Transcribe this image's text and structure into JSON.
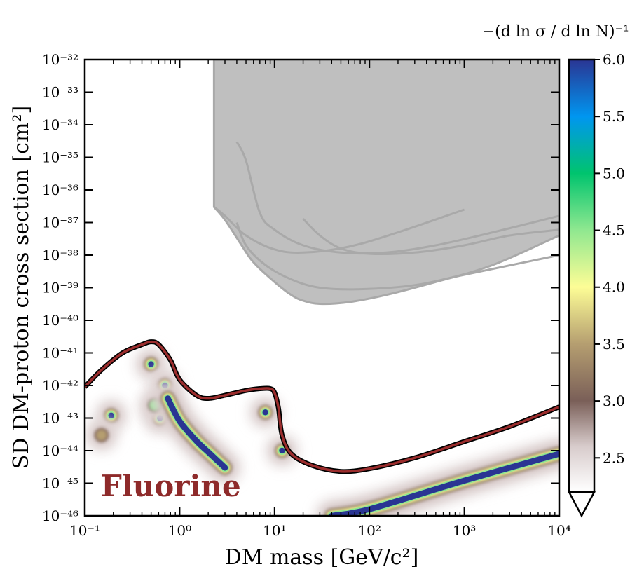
{
  "chart_data": {
    "type": "contour",
    "xlabel": "DM mass [GeV/c²]",
    "ylabel": "SD DM-proton cross section [cm²]",
    "xscale": "log",
    "yscale": "log",
    "xlim": [
      0.1,
      10000
    ],
    "ylim": [
      1e-46,
      1e-32
    ],
    "x_ticks": [
      {
        "value": 0.1,
        "label": "10⁻¹"
      },
      {
        "value": 1,
        "label": "10⁰"
      },
      {
        "value": 10,
        "label": "10¹"
      },
      {
        "value": 100,
        "label": "10²"
      },
      {
        "value": 1000,
        "label": "10³"
      },
      {
        "value": 10000,
        "label": "10⁴"
      }
    ],
    "y_ticks": [
      {
        "value": 1e-32,
        "label": "10⁻³²"
      },
      {
        "value": 1e-33,
        "label": "10⁻³³"
      },
      {
        "value": 1e-34,
        "label": "10⁻³⁴"
      },
      {
        "value": 1e-35,
        "label": "10⁻³⁵"
      },
      {
        "value": 1e-36,
        "label": "10⁻³⁶"
      },
      {
        "value": 1e-37,
        "label": "10⁻³⁷"
      },
      {
        "value": 1e-38,
        "label": "10⁻³⁸"
      },
      {
        "value": 1e-39,
        "label": "10⁻³⁹"
      },
      {
        "value": 1e-40,
        "label": "10⁻⁴⁰"
      },
      {
        "value": 1e-41,
        "label": "10⁻⁴¹"
      },
      {
        "value": 1e-42,
        "label": "10⁻⁴²"
      },
      {
        "value": 1e-43,
        "label": "10⁻⁴³"
      },
      {
        "value": 1e-44,
        "label": "10⁻⁴⁴"
      },
      {
        "value": 1e-45,
        "label": "10⁻⁴⁵"
      },
      {
        "value": 1e-46,
        "label": "10⁻⁴⁶"
      }
    ],
    "annotation": {
      "text": "Fluorine",
      "color": "#8e2a2a"
    },
    "colorbar": {
      "title": "−(d ln σ / d ln N)⁻¹",
      "range": [
        2.2,
        6.0
      ],
      "extend": "min",
      "ticks": [
        {
          "value": 6.0,
          "label": "6.0"
        },
        {
          "value": 5.5,
          "label": "5.5"
        },
        {
          "value": 5.0,
          "label": "5.0"
        },
        {
          "value": 4.5,
          "label": "4.5"
        },
        {
          "value": 4.0,
          "label": "4.0"
        },
        {
          "value": 3.5,
          "label": "3.5"
        },
        {
          "value": 3.0,
          "label": "3.0"
        },
        {
          "value": 2.5,
          "label": "2.5"
        }
      ],
      "colors": [
        {
          "value": 2.2,
          "color": "#ffffff"
        },
        {
          "value": 2.6,
          "color": "#d8cccc"
        },
        {
          "value": 3.0,
          "color": "#7a5f58"
        },
        {
          "value": 3.5,
          "color": "#b59e70"
        },
        {
          "value": 4.0,
          "color": "#fdfd96"
        },
        {
          "value": 4.5,
          "color": "#90e890"
        },
        {
          "value": 5.0,
          "color": "#00c46e"
        },
        {
          "value": 5.5,
          "color": "#0096f0"
        },
        {
          "value": 6.0,
          "color": "#2a3593"
        }
      ]
    },
    "excluded_region": {
      "color": "#bfbfbf",
      "boundary": [
        [
          2.3,
          1e-32
        ],
        [
          2.3,
          3e-37
        ],
        [
          3,
          1.2e-37
        ],
        [
          4.5,
          2e-38
        ],
        [
          6,
          6e-39
        ],
        [
          10,
          1.5e-39
        ],
        [
          15,
          6e-40
        ],
        [
          20,
          4e-40
        ],
        [
          30,
          3.2e-40
        ],
        [
          60,
          3.6e-40
        ],
        [
          150,
          6e-40
        ],
        [
          500,
          1.5e-39
        ],
        [
          2000,
          5e-39
        ],
        [
          10000,
          4e-38
        ],
        [
          10000,
          1e-32
        ]
      ]
    },
    "limit_curves": [
      {
        "color": "#a9a9a9",
        "points": [
          [
            2.3,
            3e-37
          ],
          [
            3,
            1.6e-37
          ],
          [
            5,
            4e-38
          ],
          [
            10,
            1.5e-38
          ],
          [
            20,
            1.2e-38
          ],
          [
            60,
            1.8e-38
          ],
          [
            200,
            5e-38
          ],
          [
            1000,
            2.5e-37
          ]
        ]
      },
      {
        "color": "#a9a9a9",
        "points": [
          [
            4,
            3e-35
          ],
          [
            5,
            8e-36
          ],
          [
            7,
            2e-37
          ],
          [
            10,
            6e-38
          ],
          [
            20,
            2e-38
          ],
          [
            50,
            1.2e-38
          ],
          [
            150,
            1.2e-38
          ],
          [
            500,
            2e-38
          ],
          [
            2000,
            5e-38
          ],
          [
            10000,
            1.6e-37
          ]
        ]
      },
      {
        "color": "#a9a9a9",
        "points": [
          [
            20,
            1.3e-37
          ],
          [
            30,
            4e-38
          ],
          [
            50,
            1.6e-38
          ],
          [
            100,
            1.1e-38
          ],
          [
            300,
            1.2e-38
          ],
          [
            1000,
            2e-38
          ],
          [
            3000,
            4e-38
          ],
          [
            10000,
            6e-38
          ]
        ]
      },
      {
        "color": "#a9a9a9",
        "points": [
          [
            4,
            1e-37
          ],
          [
            5,
            2e-38
          ],
          [
            8,
            5e-39
          ],
          [
            15,
            1.8e-39
          ],
          [
            30,
            1e-39
          ],
          [
            80,
            9e-40
          ],
          [
            300,
            1.2e-39
          ],
          [
            1000,
            2.5e-39
          ],
          [
            10000,
            1e-38
          ]
        ]
      }
    ],
    "neutrino_floor": {
      "color": "#9b2d2d",
      "points": [
        [
          0.1,
          9e-43
        ],
        [
          0.15,
          3e-42
        ],
        [
          0.25,
          1e-41
        ],
        [
          0.4,
          1.8e-41
        ],
        [
          0.5,
          2.2e-41
        ],
        [
          0.6,
          1.8e-41
        ],
        [
          0.8,
          6e-42
        ],
        [
          1,
          1.5e-42
        ],
        [
          1.5,
          5e-43
        ],
        [
          2,
          4e-43
        ],
        [
          3,
          5e-43
        ],
        [
          5,
          7e-43
        ],
        [
          7,
          8e-43
        ],
        [
          9,
          8e-43
        ],
        [
          10,
          6e-43
        ],
        [
          11,
          2e-43
        ],
        [
          12,
          3e-44
        ],
        [
          15,
          8e-45
        ],
        [
          25,
          3.5e-45
        ],
        [
          50,
          2.3e-45
        ],
        [
          100,
          2.8e-45
        ],
        [
          300,
          6e-45
        ],
        [
          1000,
          1.9e-44
        ],
        [
          3000,
          5.5e-44
        ],
        [
          10000,
          2.2e-43
        ]
      ]
    },
    "hot_spots": [
      {
        "x": 0.19,
        "y": 1.2e-43,
        "level": 6.0
      },
      {
        "x": 0.5,
        "y": 4.5e-42,
        "level": 6.0
      },
      {
        "x": 0.7,
        "y": 1e-42,
        "level": 6.0
      },
      {
        "x": 0.62,
        "y": 1e-43,
        "level": 6.0
      },
      {
        "x": 0.55,
        "y": 2.5e-43,
        "level": 4.5
      },
      {
        "x": 0.15,
        "y": 3e-44,
        "level": 3.3
      },
      {
        "x": 8,
        "y": 1.5e-43,
        "level": 6.0
      },
      {
        "x": 12,
        "y": 1e-44,
        "level": 6.0
      }
    ],
    "ridges": [
      {
        "points": [
          [
            0.75,
            4e-43
          ],
          [
            1,
            8e-44
          ],
          [
            1.5,
            2e-44
          ],
          [
            2,
            9e-45
          ],
          [
            3,
            3e-45
          ]
        ],
        "level": 6.0
      },
      {
        "points": [
          [
            40,
            1e-46
          ],
          [
            100,
            1.6e-46
          ],
          [
            1000,
            1.2e-45
          ],
          [
            10000,
            8e-45
          ]
        ],
        "level": 6.0
      }
    ]
  }
}
